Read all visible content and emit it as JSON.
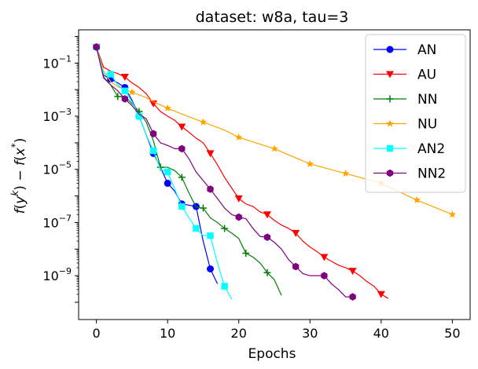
{
  "chart_data": {
    "type": "line",
    "title": "dataset: w8a, tau=3",
    "xlabel": "Epochs",
    "ylabel": "f(y^k) − f(x*)",
    "yscale": "log",
    "xlim": [
      -2.5,
      52.5
    ],
    "ylim_exp": [
      -10.65,
      0.25
    ],
    "xticks": [
      0,
      10,
      20,
      30,
      40,
      50
    ],
    "xtick_labels": [
      "0",
      "10",
      "20",
      "30",
      "40",
      "50"
    ],
    "yticks_exp": [
      -1,
      -3,
      -5,
      -7,
      -9
    ],
    "ytick_labels": [
      "10",
      "10",
      "10",
      "10",
      "10"
    ],
    "ytick_exponents": [
      "−1",
      "−3",
      "−5",
      "−7",
      "−9"
    ],
    "legend_position": "top-right",
    "series": [
      {
        "name": "AN",
        "color": "#0000ff",
        "marker": "circle",
        "x": [
          0,
          1,
          2,
          3,
          4,
          5,
          6,
          7,
          8,
          9,
          10,
          11,
          12,
          13,
          14,
          15,
          16,
          17
        ],
        "y": [
          0.4,
          0.035,
          0.025,
          0.018,
          0.012,
          0.004,
          0.001,
          0.0002,
          4e-05,
          1.2e-05,
          3e-06,
          1.5e-06,
          5e-07,
          4.5e-07,
          4e-07,
          2e-08,
          1.8e-09,
          5e-10
        ],
        "marker_x": [
          0,
          2,
          4,
          6,
          8,
          10,
          12,
          14,
          16
        ]
      },
      {
        "name": "AU",
        "color": "#ff0000",
        "marker": "triangle-down",
        "x": [
          0,
          1,
          2,
          3,
          4,
          5,
          6,
          7,
          8,
          9,
          10,
          11,
          12,
          13,
          14,
          15,
          16,
          17,
          18,
          19,
          20,
          21,
          22,
          23,
          24,
          25,
          26,
          27,
          28,
          29,
          30,
          31,
          32,
          33,
          34,
          35,
          36,
          37,
          38,
          39,
          40,
          41
        ],
        "y": [
          0.4,
          0.07,
          0.05,
          0.04,
          0.03,
          0.018,
          0.012,
          0.007,
          0.003,
          0.0015,
          0.001,
          0.0007,
          0.0004,
          0.00025,
          0.00015,
          0.0001,
          4e-05,
          1.5e-05,
          5e-06,
          2e-06,
          8e-07,
          5e-07,
          4e-07,
          2.5e-07,
          2e-07,
          1.2e-07,
          8e-08,
          6e-08,
          4e-08,
          2e-08,
          1.2e-08,
          8e-09,
          5e-09,
          3.5e-09,
          2.5e-09,
          2e-09,
          1.5e-09,
          1e-09,
          6e-10,
          4e-10,
          2e-10,
          1.4e-10
        ],
        "marker_x": [
          0,
          4,
          8,
          12,
          16,
          20,
          24,
          28,
          32,
          36,
          40
        ]
      },
      {
        "name": "NN",
        "color": "#008000",
        "marker": "plus",
        "x": [
          0,
          1,
          2,
          3,
          4,
          5,
          6,
          7,
          8,
          9,
          10,
          11,
          12,
          13,
          14,
          15,
          16,
          17,
          18,
          19,
          20,
          21,
          22,
          23,
          24,
          25,
          26
        ],
        "y": [
          0.4,
          0.03,
          0.015,
          0.0055,
          0.0055,
          0.003,
          0.0015,
          0.0006,
          0.00012,
          1.2e-05,
          1.2e-05,
          9e-06,
          5e-06,
          1.3e-06,
          3.8e-07,
          3.5e-07,
          1.5e-07,
          1e-07,
          6e-08,
          4e-08,
          2.5e-08,
          7e-09,
          5e-09,
          3e-09,
          1.3e-09,
          7e-10,
          1.8e-10
        ],
        "marker_x": [
          0,
          3,
          6,
          9,
          12,
          15,
          18,
          21,
          24
        ]
      },
      {
        "name": "NU",
        "color": "#ffa500",
        "marker": "star",
        "x": [
          0,
          1,
          2,
          3,
          4,
          5,
          7,
          8,
          10,
          12,
          15,
          18,
          20,
          25,
          30,
          35,
          40,
          45,
          50
        ],
        "y": [
          0.4,
          0.05,
          0.02,
          0.013,
          0.01,
          0.008,
          0.005,
          0.0035,
          0.002,
          0.0012,
          0.0006,
          0.0003,
          0.00016,
          6e-05,
          1.6e-05,
          7e-06,
          3e-06,
          7e-07,
          2e-07
        ],
        "marker_x": [
          0,
          5,
          10,
          15,
          20,
          25,
          30,
          35,
          40,
          45,
          50
        ]
      },
      {
        "name": "AN2",
        "color": "#00ffff",
        "marker": "square",
        "x": [
          0,
          1,
          2,
          3,
          4,
          5,
          6,
          7,
          8,
          9,
          10,
          11,
          12,
          13,
          14,
          15,
          16,
          17,
          18,
          19
        ],
        "y": [
          0.4,
          0.04,
          0.038,
          0.015,
          0.009,
          0.0035,
          0.001,
          0.0002,
          5e-05,
          1e-05,
          8e-06,
          1.8e-06,
          4e-07,
          1.5e-07,
          6e-08,
          3.2e-08,
          3.2e-08,
          3e-09,
          4e-10,
          1.3e-10
        ],
        "marker_x": [
          0,
          2,
          4,
          6,
          8,
          10,
          12,
          14,
          16,
          18
        ]
      },
      {
        "name": "NN2",
        "color": "#800080",
        "marker": "hexagon",
        "x": [
          0,
          1,
          2,
          3,
          4,
          5,
          6,
          7,
          8,
          9,
          10,
          11,
          12,
          13,
          14,
          15,
          16,
          17,
          18,
          19,
          20,
          21,
          22,
          23,
          24,
          25,
          26,
          27,
          28,
          29,
          30,
          31,
          32,
          33,
          34,
          35,
          36
        ],
        "y": [
          0.4,
          0.028,
          0.015,
          0.009,
          0.0045,
          0.0025,
          0.0012,
          0.0008,
          0.00022,
          0.0001,
          8e-05,
          6e-05,
          6e-05,
          2.5e-05,
          8e-06,
          3.8e-06,
          1.8e-06,
          8e-07,
          3.5e-07,
          2e-07,
          1.6e-07,
          1.4e-07,
          6e-08,
          3e-08,
          2.8e-08,
          1.8e-08,
          1e-08,
          4e-09,
          2.2e-09,
          1.2e-09,
          1e-09,
          1e-09,
          1e-09,
          5e-10,
          3e-10,
          1.6e-10,
          1.6e-10
        ],
        "marker_x": [
          0,
          4,
          8,
          12,
          16,
          20,
          24,
          28,
          32,
          36
        ]
      }
    ]
  }
}
